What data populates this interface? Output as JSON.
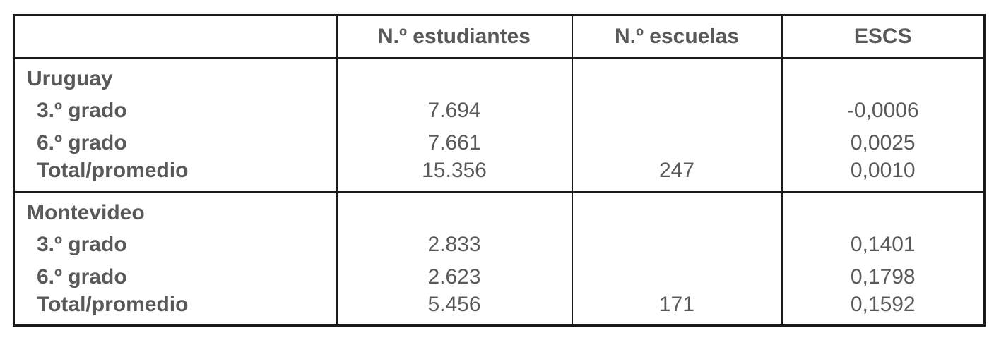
{
  "table": {
    "columns": [
      "",
      "N.º estudiantes",
      "N.º escuelas",
      "ESCS"
    ],
    "sections": [
      {
        "name": "Uruguay",
        "rows": [
          {
            "label": "3.º grado",
            "estudiantes": "7.694",
            "escuelas": "",
            "escs": "-0,0006"
          },
          {
            "label": "6.º grado",
            "estudiantes": "7.661",
            "escuelas": "",
            "escs": "0,0025"
          },
          {
            "label": "Total/promedio",
            "estudiantes": "15.356",
            "escuelas": "247",
            "escs": "0,0010"
          }
        ]
      },
      {
        "name": "Montevideo",
        "rows": [
          {
            "label": "3.º grado",
            "estudiantes": "2.833",
            "escuelas": "",
            "escs": "0,1401"
          },
          {
            "label": "6.º grado",
            "estudiantes": "2.623",
            "escuelas": "",
            "escs": "0,1798"
          },
          {
            "label": "Total/promedio",
            "estudiantes": "5.456",
            "escuelas": "171",
            "escs": "0,1592"
          }
        ]
      }
    ],
    "colors": {
      "text": "#595959",
      "border": "#1a1a1a"
    }
  }
}
